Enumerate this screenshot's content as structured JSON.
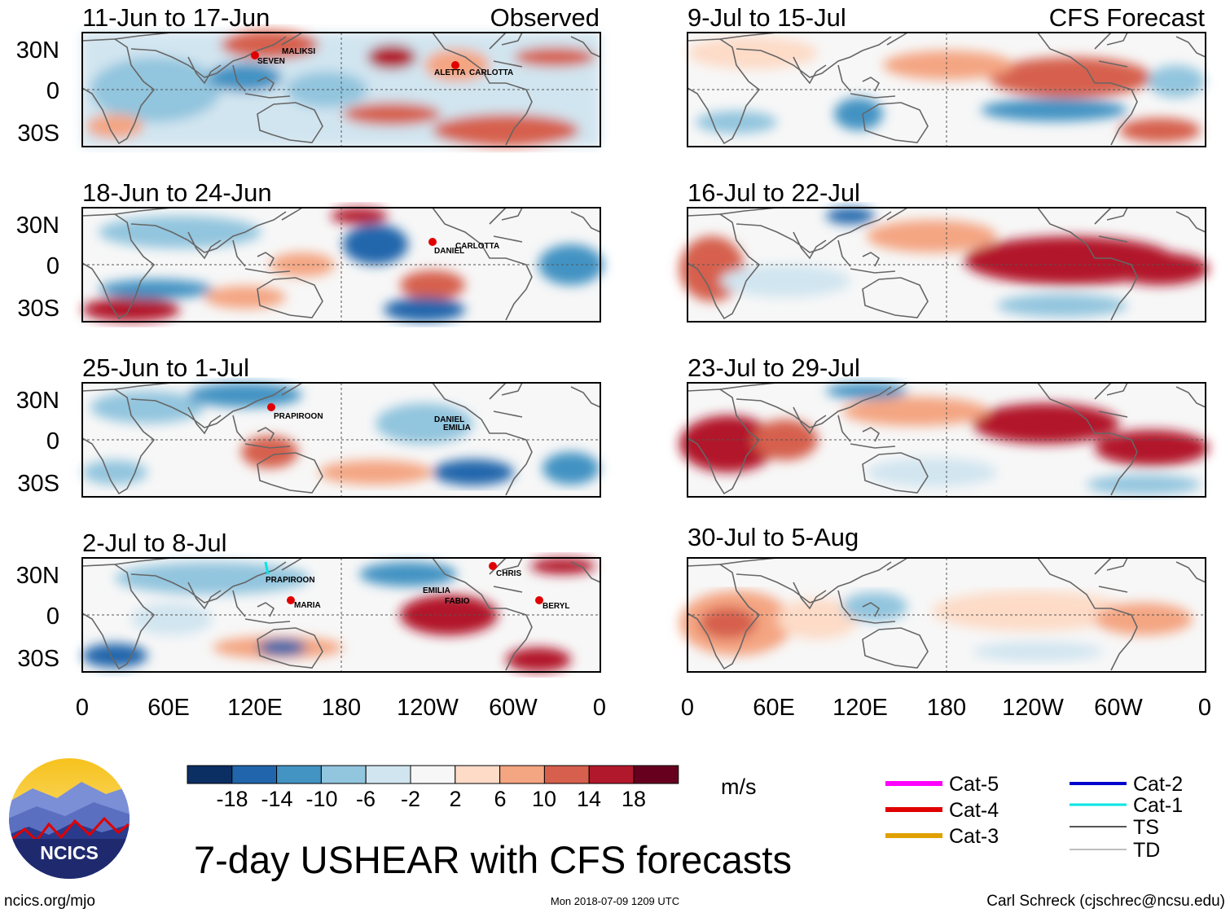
{
  "figure": {
    "title": "7-day USHEAR with CFS forecasts",
    "source_url": "ncics.org/mjo",
    "timestamp": "Mon 2018-07-09 1209 UTC",
    "author": "Carl Schreck (cjschrec@ncsu.edu)",
    "logo_text": "NCICS",
    "units": "m/s"
  },
  "headers": {
    "observed": "Observed",
    "forecast": "CFS Forecast"
  },
  "lat_labels": [
    "30N",
    "0",
    "30S"
  ],
  "lon_labels": [
    "0",
    "60E",
    "120E",
    "180",
    "120W",
    "60W",
    "0"
  ],
  "colorbar": {
    "ticks": [
      "-18",
      "-14",
      "-10",
      "-6",
      "-2",
      "2",
      "6",
      "10",
      "14",
      "18"
    ],
    "colors": [
      "#0b2e63",
      "#2166ac",
      "#4393c3",
      "#92c5de",
      "#d1e5f0",
      "#f7f7f7",
      "#fddbc7",
      "#f4a582",
      "#d6604d",
      "#b2182b",
      "#67001f"
    ]
  },
  "legend": [
    {
      "label": "Cat-5",
      "color": "#ff00ff"
    },
    {
      "label": "Cat-4",
      "color": "#e00000"
    },
    {
      "label": "Cat-3",
      "color": "#e0a000"
    },
    {
      "label": "Cat-2",
      "color": "#0000cc"
    },
    {
      "label": "Cat-1",
      "color": "#00e5e5"
    },
    {
      "label": "TS",
      "color": "#555555"
    },
    {
      "label": "TD",
      "color": "#aaaaaa"
    }
  ],
  "panels": {
    "observed": [
      {
        "period": "11-Jun to 17-Jun",
        "storms": [
          "MALIKSI",
          "SEVEN",
          "ALETTA",
          "CARLOTTA"
        ]
      },
      {
        "period": "18-Jun to 24-Jun",
        "storms": [
          "CARLOTTA",
          "DANIEL"
        ]
      },
      {
        "period": "25-Jun to 1-Jul",
        "storms": [
          "PRAPIROON",
          "DANIEL",
          "EMILIA"
        ]
      },
      {
        "period": "2-Jul to 8-Jul",
        "storms": [
          "PRAPIROON",
          "MARIA",
          "EMILIA",
          "FABIO",
          "CHRIS",
          "BERYL"
        ]
      }
    ],
    "forecast": [
      {
        "period": "9-Jul to 15-Jul"
      },
      {
        "period": "16-Jul to 22-Jul"
      },
      {
        "period": "23-Jul to 29-Jul"
      },
      {
        "period": "30-Jul to 5-Aug"
      }
    ]
  }
}
